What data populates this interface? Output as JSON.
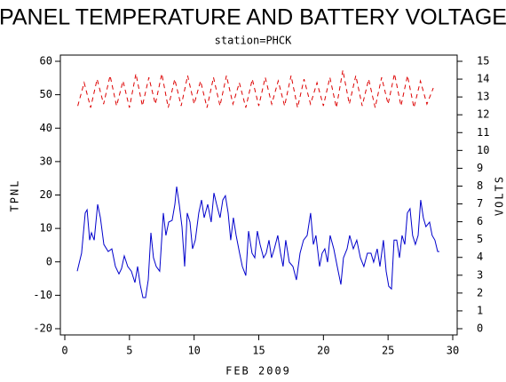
{
  "chart_data": {
    "type": "line",
    "title": "PANEL TEMPERATURE AND BATTERY VOLTAGE",
    "subtitle": "station=PHCK",
    "xlabel": "FEB 2009",
    "ylabel": "TPNL",
    "y2label": "VOLTS",
    "xlim": [
      0,
      30
    ],
    "xticks": [
      0,
      5,
      10,
      15,
      20,
      25,
      30
    ],
    "ylim": [
      -20,
      60
    ],
    "yticks": [
      -20,
      -10,
      0,
      10,
      20,
      30,
      40,
      50,
      60
    ],
    "y2lim": [
      0,
      15
    ],
    "y2ticks": [
      0,
      1,
      2,
      3,
      4,
      5,
      6,
      7,
      8,
      9,
      10,
      11,
      12,
      13,
      14,
      15
    ],
    "series": [
      {
        "color": "#0000cc",
        "x": [
          0.96,
          1.3,
          1.58,
          1.72,
          1.92,
          2.06,
          2.27,
          2.54,
          2.75,
          3.02,
          3.36,
          3.64,
          3.91,
          4.19,
          4.39,
          4.6,
          4.87,
          5.15,
          5.42,
          5.63,
          5.83,
          6.04,
          6.25,
          6.45,
          6.66,
          6.86,
          7.07,
          7.34,
          7.62,
          7.82,
          8.03,
          8.3,
          8.51,
          8.65,
          8.85,
          9.06,
          9.27,
          9.47,
          9.68,
          9.88,
          10.09,
          10.36,
          10.57,
          10.78,
          11.05,
          11.32,
          11.53,
          11.74,
          12.01,
          12.22,
          12.42,
          12.63,
          12.83,
          13.04,
          13.25,
          13.52,
          13.73,
          14.0,
          14.21,
          14.48,
          14.69,
          14.89,
          15.1,
          15.37,
          15.58,
          15.79,
          15.99,
          16.2,
          16.47,
          16.68,
          16.88,
          17.09,
          17.36,
          17.64,
          17.91,
          18.19,
          18.46,
          18.74,
          19.01,
          19.22,
          19.42,
          19.7,
          19.9,
          20.11,
          20.32,
          20.52,
          20.8,
          21.07,
          21.35,
          21.55,
          21.83,
          22.03,
          22.31,
          22.58,
          22.86,
          23.13,
          23.4,
          23.68,
          23.88,
          24.16,
          24.37,
          24.64,
          24.85,
          25.05,
          25.26,
          25.46,
          25.67,
          25.88,
          26.08,
          26.29,
          26.49,
          26.7,
          26.9,
          27.11,
          27.32,
          27.52,
          27.73,
          27.93,
          28.21,
          28.41,
          28.62,
          28.83,
          28.96
        ],
        "values": [
          -2.8,
          2.6,
          14.6,
          15.6,
          6.5,
          8.7,
          6.5,
          17.2,
          13.2,
          5.2,
          3.1,
          3.9,
          -1.4,
          -3.6,
          -2.0,
          1.8,
          -1.4,
          -2.8,
          -6.2,
          -1.4,
          -6.8,
          -10.7,
          -10.7,
          -5.4,
          8.7,
          1.2,
          -1.4,
          -2.8,
          14.6,
          7.9,
          11.9,
          12.4,
          17.2,
          22.5,
          17.2,
          10.5,
          -1.4,
          14.6,
          11.9,
          3.9,
          6.5,
          14.6,
          18.5,
          13.2,
          17.2,
          11.9,
          20.6,
          17.2,
          13.2,
          18.5,
          19.8,
          14.6,
          6.5,
          13.2,
          7.9,
          2.6,
          -1.4,
          -4.1,
          9.2,
          2.6,
          1.2,
          9.2,
          5.2,
          1.2,
          2.6,
          6.5,
          1.2,
          3.9,
          7.9,
          2.6,
          -1.4,
          6.5,
          -0.1,
          -1.4,
          -5.4,
          2.6,
          6.5,
          7.9,
          14.6,
          5.2,
          7.9,
          -1.4,
          2.6,
          3.9,
          -0.1,
          7.9,
          3.9,
          -1.4,
          -6.8,
          1.2,
          3.9,
          7.9,
          3.9,
          6.5,
          1.2,
          -1.4,
          2.6,
          2.6,
          -0.1,
          3.9,
          -1.4,
          6.5,
          -2.8,
          -7.3,
          -8.1,
          6.5,
          6.5,
          1.2,
          7.9,
          5.2,
          14.6,
          15.9,
          7.9,
          5.2,
          7.9,
          18.5,
          13.2,
          10.5,
          11.9,
          7.9,
          6.5,
          3.1,
          3.1
        ]
      },
      {
        "color": "#dd0000",
        "axis": "y2",
        "dashed": true,
        "x": [
          1.0,
          1.5,
          2.0,
          2.5,
          3.0,
          3.5,
          4.0,
          4.5,
          5.0,
          5.5,
          6.0,
          6.5,
          7.0,
          7.5,
          8.0,
          8.5,
          9.0,
          9.5,
          10.0,
          10.5,
          11.0,
          11.5,
          12.0,
          12.5,
          13.0,
          13.5,
          14.0,
          14.5,
          15.0,
          15.5,
          16.0,
          16.5,
          17.0,
          17.5,
          18.0,
          18.5,
          19.0,
          19.5,
          20.0,
          20.5,
          21.0,
          21.5,
          22.0,
          22.5,
          23.0,
          23.5,
          24.0,
          24.5,
          25.0,
          25.5,
          26.0,
          26.5,
          27.0,
          27.5,
          28.0,
          28.5
        ],
        "values": [
          12.5,
          13.8,
          12.4,
          14.0,
          12.6,
          14.2,
          12.5,
          13.9,
          12.4,
          14.3,
          12.5,
          14.1,
          12.6,
          14.3,
          12.4,
          14.0,
          12.5,
          14.2,
          12.6,
          13.9,
          12.4,
          14.1,
          12.5,
          14.2,
          12.6,
          13.8,
          12.4,
          14.0,
          12.5,
          14.1,
          12.6,
          13.9,
          12.5,
          14.2,
          12.4,
          14.0,
          12.6,
          13.8,
          12.5,
          14.1,
          12.4,
          14.5,
          12.6,
          14.2,
          12.5,
          14.0,
          12.4,
          14.1,
          12.6,
          14.3,
          12.5,
          14.2,
          12.4,
          13.9,
          12.6,
          13.5
        ]
      }
    ]
  }
}
